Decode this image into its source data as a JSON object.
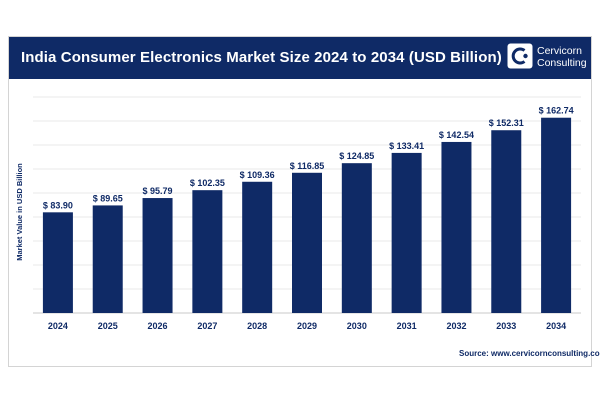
{
  "header": {
    "title": "India Consumer Electronics Market Size 2024 to 2034 (USD Billion)",
    "logo_line1": "Cervicorn",
    "logo_line2": "Consulting"
  },
  "source": "Source: www.cervicornconsulting.com",
  "colors": {
    "header_bg": "#0f2a66",
    "bar": "#0f2a66",
    "grid": "#e3e3e3",
    "label": "#0f2a66"
  },
  "chart_data": {
    "type": "bar",
    "title": "India Consumer Electronics Market Size 2024 to 2034 (USD Billion)",
    "xlabel": "",
    "ylabel": "Market Value in USD Billion",
    "categories": [
      "2024",
      "2025",
      "2026",
      "2027",
      "2028",
      "2029",
      "2030",
      "2031",
      "2032",
      "2033",
      "2034"
    ],
    "values": [
      83.9,
      89.65,
      95.79,
      102.35,
      109.36,
      116.85,
      124.85,
      133.41,
      142.54,
      152.31,
      162.74
    ],
    "value_labels": [
      "$ 83.90",
      "$ 89.65",
      "$ 95.79",
      "$ 102.35",
      "$ 109.36",
      "$ 116.85",
      "$ 124.85",
      "$ 133.41",
      "$ 142.54",
      "$ 152.31",
      "$ 162.74"
    ],
    "ylim": [
      0,
      180
    ],
    "grid": true
  }
}
